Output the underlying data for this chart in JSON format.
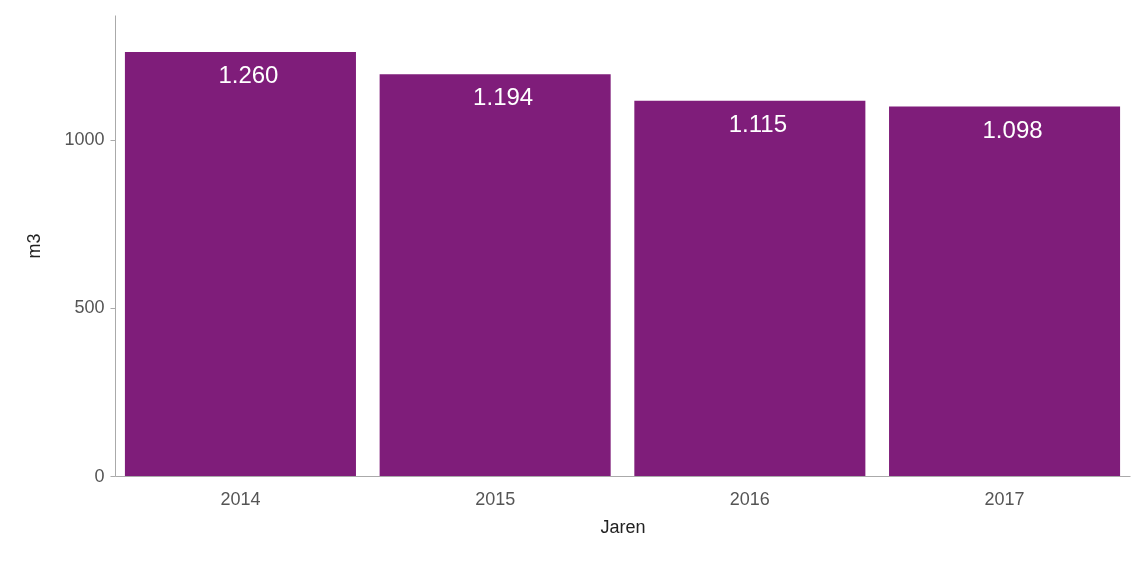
{
  "chart_data": {
    "type": "bar",
    "xlabel": "Jaren",
    "ylabel": "m3",
    "categories": [
      "2014",
      "2015",
      "2016",
      "2017"
    ],
    "values": [
      1260,
      1194,
      1115,
      1098
    ],
    "value_labels": [
      "1.260",
      "1.194",
      "1.115",
      "1.098"
    ],
    "color": "#7f1d7a",
    "ylim": [
      0,
      1370
    ],
    "yticks": [
      0,
      500,
      1000
    ],
    "grid": false
  }
}
